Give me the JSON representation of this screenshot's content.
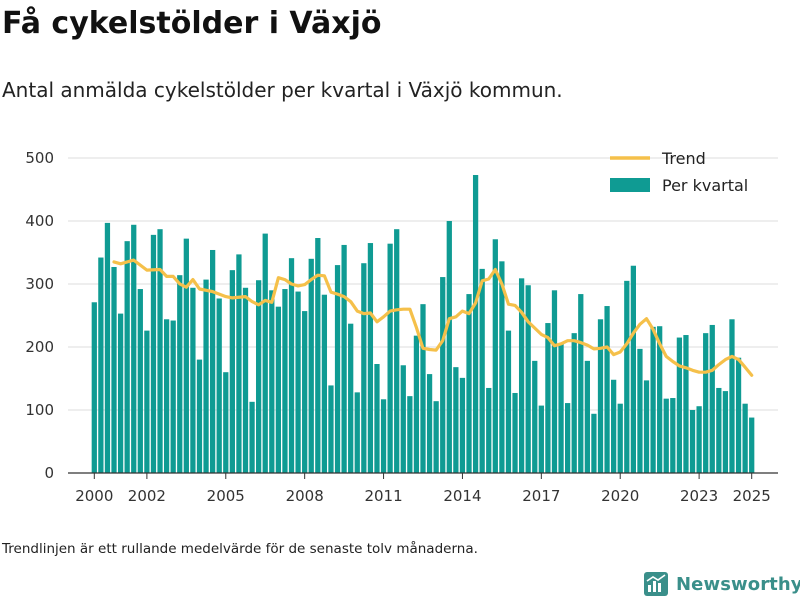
{
  "header": {
    "title": "Få cykelstölder i Växjö",
    "subtitle": "Antal anmälda cykelstölder per kvartal i Växjö kommun."
  },
  "footer": {
    "note": "Trendlinjen är ett rullande medelvärde för de senaste tolv månaderna.",
    "brand": "Newsworthy"
  },
  "icons": {
    "brand": "newsworthy-logo-icon"
  },
  "colors": {
    "bar": "#0f9b93",
    "trend": "#f5c04a",
    "grid": "#dddddd",
    "axis": "#333333",
    "brand": "#3a8f8a"
  },
  "chart_data": {
    "type": "bar",
    "ylim": [
      0,
      500
    ],
    "yticks": [
      0,
      100,
      200,
      300,
      400,
      500
    ],
    "xlim": [
      1999,
      2026
    ],
    "xticks": [
      {
        "value": 2000,
        "label": "2000"
      },
      {
        "value": 2002,
        "label": "2002"
      },
      {
        "value": 2005,
        "label": "2005"
      },
      {
        "value": 2008,
        "label": "2008"
      },
      {
        "value": 2011,
        "label": "2011"
      },
      {
        "value": 2014,
        "label": "2014"
      },
      {
        "value": 2017,
        "label": "2017"
      },
      {
        "value": 2020,
        "label": "2020"
      },
      {
        "value": 2023,
        "label": "2023"
      },
      {
        "value": 2025,
        "label": "2025"
      }
    ],
    "grid": true,
    "legend_position": "top-right",
    "start_quarter": "2000 Q1",
    "series": [
      {
        "name": "Per kvartal",
        "type": "bar",
        "values": [
          271,
          342,
          397,
          327,
          253,
          368,
          394,
          292,
          226,
          378,
          387,
          244,
          242,
          314,
          372,
          294,
          180,
          307,
          354,
          277,
          160,
          322,
          347,
          294,
          113,
          306,
          380,
          290,
          264,
          292,
          341,
          288,
          257,
          340,
          373,
          283,
          139,
          330,
          362,
          237,
          128,
          333,
          365,
          173,
          117,
          364,
          387,
          171,
          122,
          218,
          268,
          157,
          114,
          311,
          400,
          168,
          151,
          284,
          473,
          324,
          135,
          371,
          336,
          226,
          127,
          309,
          298,
          178,
          107,
          238,
          290,
          205,
          111,
          222,
          284,
          178,
          94,
          244,
          265,
          148,
          110,
          305,
          329,
          197,
          147,
          232,
          233,
          118,
          119,
          215,
          219,
          100,
          106,
          222,
          235,
          135,
          130,
          244,
          183,
          110,
          88
        ]
      },
      {
        "name": "Trend",
        "type": "line",
        "points": [
          {
            "x": 2000.75,
            "y": 335
          },
          {
            "x": 2001.0,
            "y": 332
          },
          {
            "x": 2001.5,
            "y": 338
          },
          {
            "x": 2001.75,
            "y": 330
          },
          {
            "x": 2002.0,
            "y": 322
          },
          {
            "x": 2002.5,
            "y": 323
          },
          {
            "x": 2002.75,
            "y": 312
          },
          {
            "x": 2003.0,
            "y": 312
          },
          {
            "x": 2003.25,
            "y": 300
          },
          {
            "x": 2003.5,
            "y": 295
          },
          {
            "x": 2003.75,
            "y": 307
          },
          {
            "x": 2004.0,
            "y": 292
          },
          {
            "x": 2004.5,
            "y": 288
          },
          {
            "x": 2005.0,
            "y": 280
          },
          {
            "x": 2005.25,
            "y": 278
          },
          {
            "x": 2005.75,
            "y": 280
          },
          {
            "x": 2006.0,
            "y": 272
          },
          {
            "x": 2006.25,
            "y": 267
          },
          {
            "x": 2006.5,
            "y": 274
          },
          {
            "x": 2006.75,
            "y": 271
          },
          {
            "x": 2007.0,
            "y": 310
          },
          {
            "x": 2007.25,
            "y": 307
          },
          {
            "x": 2007.5,
            "y": 300
          },
          {
            "x": 2007.75,
            "y": 297
          },
          {
            "x": 2008.0,
            "y": 299
          },
          {
            "x": 2008.25,
            "y": 307
          },
          {
            "x": 2008.5,
            "y": 314
          },
          {
            "x": 2008.75,
            "y": 313
          },
          {
            "x": 2009.0,
            "y": 287
          },
          {
            "x": 2009.25,
            "y": 284
          },
          {
            "x": 2009.5,
            "y": 280
          },
          {
            "x": 2009.75,
            "y": 272
          },
          {
            "x": 2010.0,
            "y": 257
          },
          {
            "x": 2010.25,
            "y": 253
          },
          {
            "x": 2010.5,
            "y": 254
          },
          {
            "x": 2010.75,
            "y": 240
          },
          {
            "x": 2011.0,
            "y": 248
          },
          {
            "x": 2011.25,
            "y": 257
          },
          {
            "x": 2011.5,
            "y": 259
          },
          {
            "x": 2011.75,
            "y": 260
          },
          {
            "x": 2012.0,
            "y": 260
          },
          {
            "x": 2012.25,
            "y": 231
          },
          {
            "x": 2012.5,
            "y": 198
          },
          {
            "x": 2012.75,
            "y": 196
          },
          {
            "x": 2013.0,
            "y": 195
          },
          {
            "x": 2013.25,
            "y": 210
          },
          {
            "x": 2013.5,
            "y": 245
          },
          {
            "x": 2013.75,
            "y": 248
          },
          {
            "x": 2014.0,
            "y": 257
          },
          {
            "x": 2014.25,
            "y": 253
          },
          {
            "x": 2014.5,
            "y": 270
          },
          {
            "x": 2014.75,
            "y": 305
          },
          {
            "x": 2015.0,
            "y": 308
          },
          {
            "x": 2015.25,
            "y": 323
          },
          {
            "x": 2015.5,
            "y": 300
          },
          {
            "x": 2015.75,
            "y": 268
          },
          {
            "x": 2016.0,
            "y": 266
          },
          {
            "x": 2016.25,
            "y": 255
          },
          {
            "x": 2016.5,
            "y": 240
          },
          {
            "x": 2016.75,
            "y": 230
          },
          {
            "x": 2017.0,
            "y": 220
          },
          {
            "x": 2017.25,
            "y": 215
          },
          {
            "x": 2017.5,
            "y": 202
          },
          {
            "x": 2017.75,
            "y": 205
          },
          {
            "x": 2018.0,
            "y": 210
          },
          {
            "x": 2018.25,
            "y": 210
          },
          {
            "x": 2018.5,
            "y": 207
          },
          {
            "x": 2018.75,
            "y": 203
          },
          {
            "x": 2019.0,
            "y": 197
          },
          {
            "x": 2019.25,
            "y": 198
          },
          {
            "x": 2019.5,
            "y": 200
          },
          {
            "x": 2019.75,
            "y": 188
          },
          {
            "x": 2020.0,
            "y": 192
          },
          {
            "x": 2020.25,
            "y": 205
          },
          {
            "x": 2020.5,
            "y": 222
          },
          {
            "x": 2020.75,
            "y": 236
          },
          {
            "x": 2021.0,
            "y": 245
          },
          {
            "x": 2021.25,
            "y": 228
          },
          {
            "x": 2021.5,
            "y": 205
          },
          {
            "x": 2021.75,
            "y": 185
          },
          {
            "x": 2022.0,
            "y": 177
          },
          {
            "x": 2022.25,
            "y": 170
          },
          {
            "x": 2022.5,
            "y": 167
          },
          {
            "x": 2022.75,
            "y": 163
          },
          {
            "x": 2023.0,
            "y": 160
          },
          {
            "x": 2023.25,
            "y": 160
          },
          {
            "x": 2023.5,
            "y": 163
          },
          {
            "x": 2023.75,
            "y": 172
          },
          {
            "x": 2024.0,
            "y": 180
          },
          {
            "x": 2024.25,
            "y": 185
          },
          {
            "x": 2024.5,
            "y": 180
          },
          {
            "x": 2024.75,
            "y": 168
          },
          {
            "x": 2025.0,
            "y": 155
          }
        ]
      }
    ]
  }
}
